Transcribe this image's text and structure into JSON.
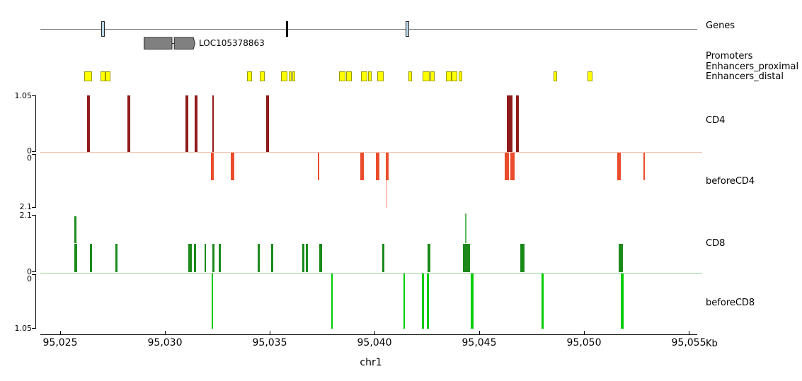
{
  "colors": {
    "cd4_bar": "#8f1b1b",
    "before_cd4_bar": "#eb4c2b",
    "before_cd4_spike": "#f0916f",
    "cd4_baseline": "#f3c0b0",
    "cd8_bar": "#1b8a1b",
    "cd8_spike_light": "#5cb85c",
    "before_cd8_bar": "#00cc00",
    "cd8_baseline": "#a0dca0",
    "enhancer_fill": "#ffff00",
    "enhancer_border": "#9a9a00",
    "gene_fill": "#808080",
    "gene_border": "#2a2a2a",
    "exon_blue_fill": "#b9d7e8",
    "genes_line": "#808080",
    "axis": "#000000"
  },
  "chart_data": {
    "type": "genome-tracks",
    "chromosome": "chr1",
    "x_unit": "Kb",
    "xlim_kb": [
      95024.05,
      95055.65
    ],
    "x_tick_values_kb": [
      95025,
      95030,
      95035,
      95040,
      95045,
      95050,
      95055
    ],
    "x_tick_labels": [
      "95,025",
      "95,030",
      "95,035",
      "95,040",
      "95,045",
      "95,050",
      "95,055"
    ],
    "tracks": {
      "genes": {
        "label": "Genes",
        "line_kb": [
          95024.05,
          95055.4
        ],
        "features": [
          {
            "type": "exon_blue",
            "start": 95026.96,
            "end": 95027.13
          },
          {
            "type": "tick_black",
            "start": 95035.78,
            "end": 95035.87
          },
          {
            "type": "exon_blue",
            "start": 95041.49,
            "end": 95041.66
          }
        ],
        "gene": {
          "name": "LOC105378863",
          "strand": "+",
          "exons": [
            [
              95029.0,
              95030.35
            ],
            [
              95030.46,
              95031.4
            ]
          ],
          "arrow_tip_kb": 95031.45
        }
      },
      "promoters": {
        "label": "Promoters",
        "boxes_kb": []
      },
      "enhancers_proximal": {
        "label": "Enhancers_proximal",
        "boxes_kb": []
      },
      "enhancers_distal": {
        "label": "Enhancers_distal",
        "boxes_kb": [
          [
            95026.15,
            95026.52
          ],
          [
            95026.93,
            95027.15
          ],
          [
            95027.17,
            95027.4
          ],
          [
            95033.91,
            95034.17
          ],
          [
            95034.53,
            95034.76
          ],
          [
            95035.54,
            95035.84
          ],
          [
            95035.9,
            95036.05
          ],
          [
            95036.08,
            95036.22
          ],
          [
            95038.3,
            95038.61
          ],
          [
            95038.64,
            95038.92
          ],
          [
            95039.36,
            95039.66
          ],
          [
            95039.69,
            95039.85
          ],
          [
            95040.15,
            95040.43
          ],
          [
            95041.62,
            95041.78
          ],
          [
            95042.3,
            95042.64
          ],
          [
            95042.66,
            95042.88
          ],
          [
            95043.41,
            95043.67
          ],
          [
            95043.69,
            95043.94
          ],
          [
            95044.01,
            95044.2
          ],
          [
            95048.54,
            95048.71
          ],
          [
            95050.17,
            95050.39
          ]
        ]
      },
      "cd4": {
        "label": "CD4",
        "direction": "up",
        "ylim": [
          0,
          1.05
        ],
        "scale_top_label": "1.05",
        "scale_bottom_label": "0",
        "bars": [
          {
            "s": 95026.27,
            "e": 95026.42,
            "v": 1.05
          },
          {
            "s": 95028.21,
            "e": 95028.36,
            "v": 1.05
          },
          {
            "s": 95030.97,
            "e": 95031.12,
            "v": 1.05
          },
          {
            "s": 95031.42,
            "e": 95031.54,
            "v": 1.05
          },
          {
            "s": 95032.25,
            "e": 95032.32,
            "v": 1.05
          },
          {
            "s": 95034.82,
            "e": 95034.97,
            "v": 1.05
          },
          {
            "s": 95046.33,
            "e": 95046.58,
            "v": 1.05
          },
          {
            "s": 95046.76,
            "e": 95046.89,
            "v": 1.05
          }
        ]
      },
      "before_cd4": {
        "label": "beforeCD4",
        "direction": "down",
        "ylim": [
          0,
          2.1
        ],
        "scale_top_label": "0",
        "scale_bottom_label": "2.1",
        "bars": [
          {
            "s": 95032.19,
            "e": 95032.34,
            "v": 1.05
          },
          {
            "s": 95033.15,
            "e": 95033.3,
            "v": 1.05
          },
          {
            "s": 95037.31,
            "e": 95037.38,
            "v": 1.05
          },
          {
            "s": 95039.34,
            "e": 95039.48,
            "v": 1.05
          },
          {
            "s": 95040.07,
            "e": 95040.22,
            "v": 1.05
          },
          {
            "s": 95040.53,
            "e": 95040.68,
            "v": 1.05,
            "spike_kb": 95040.6,
            "spike_v": 2.1,
            "spike_w": 1.3,
            "spike_light": true
          },
          {
            "s": 95046.22,
            "e": 95046.42,
            "v": 1.05
          },
          {
            "s": 95046.49,
            "e": 95046.69,
            "v": 1.05
          },
          {
            "s": 95051.6,
            "e": 95051.76,
            "v": 1.05
          },
          {
            "s": 95052.84,
            "e": 95052.92,
            "v": 1.05
          }
        ]
      },
      "cd8": {
        "label": "CD8",
        "direction": "up",
        "ylim": [
          0,
          2.1
        ],
        "scale_top_label": "2.1",
        "scale_bottom_label": "0",
        "bars": [
          {
            "s": 95025.67,
            "e": 95025.81,
            "v": 1.05,
            "spike_kb": 95025.72,
            "spike_v": 2.05,
            "spike_w": 2.5,
            "spike_light": false
          },
          {
            "s": 95026.42,
            "e": 95026.52,
            "v": 1.05
          },
          {
            "s": 95027.65,
            "e": 95027.72,
            "v": 1.05
          },
          {
            "s": 95031.11,
            "e": 95031.28,
            "v": 1.05
          },
          {
            "s": 95031.4,
            "e": 95031.5,
            "v": 1.05
          },
          {
            "s": 95031.89,
            "e": 95031.96,
            "v": 1.05
          },
          {
            "s": 95032.25,
            "e": 95032.37,
            "v": 1.05
          },
          {
            "s": 95032.56,
            "e": 95032.68,
            "v": 1.05
          },
          {
            "s": 95034.43,
            "e": 95034.54,
            "v": 1.05
          },
          {
            "s": 95035.06,
            "e": 95035.16,
            "v": 1.05
          },
          {
            "s": 95036.55,
            "e": 95036.66,
            "v": 1.05
          },
          {
            "s": 95036.72,
            "e": 95036.84,
            "v": 1.05
          },
          {
            "s": 95037.38,
            "e": 95037.5,
            "v": 1.05
          },
          {
            "s": 95040.36,
            "e": 95040.49,
            "v": 1.05
          },
          {
            "s": 95042.53,
            "e": 95042.67,
            "v": 1.05
          },
          {
            "s": 95044.22,
            "e": 95044.56,
            "v": 1.05,
            "spike_kb": 95044.36,
            "spike_v": 2.15,
            "spike_w": 1.3,
            "spike_light": true
          },
          {
            "s": 95046.97,
            "e": 95047.16,
            "v": 1.05
          },
          {
            "s": 95051.66,
            "e": 95051.85,
            "v": 1.05
          }
        ]
      },
      "before_cd8": {
        "label": "beforeCD8",
        "direction": "down",
        "ylim": [
          0,
          1.05
        ],
        "scale_top_label": "0",
        "scale_bottom_label": "1.05",
        "bars": [
          {
            "s": 95032.23,
            "e": 95032.31,
            "v": 1.05
          },
          {
            "s": 95037.94,
            "e": 95038.02,
            "v": 1.05
          },
          {
            "s": 95041.4,
            "e": 95041.45,
            "v": 1.05
          },
          {
            "s": 95042.26,
            "e": 95042.35,
            "v": 1.05
          },
          {
            "s": 95042.5,
            "e": 95042.59,
            "v": 1.05
          },
          {
            "s": 95044.59,
            "e": 95044.73,
            "v": 1.05
          },
          {
            "s": 95047.97,
            "e": 95048.07,
            "v": 1.05
          },
          {
            "s": 95051.76,
            "e": 95051.89,
            "v": 1.05
          }
        ]
      }
    }
  }
}
